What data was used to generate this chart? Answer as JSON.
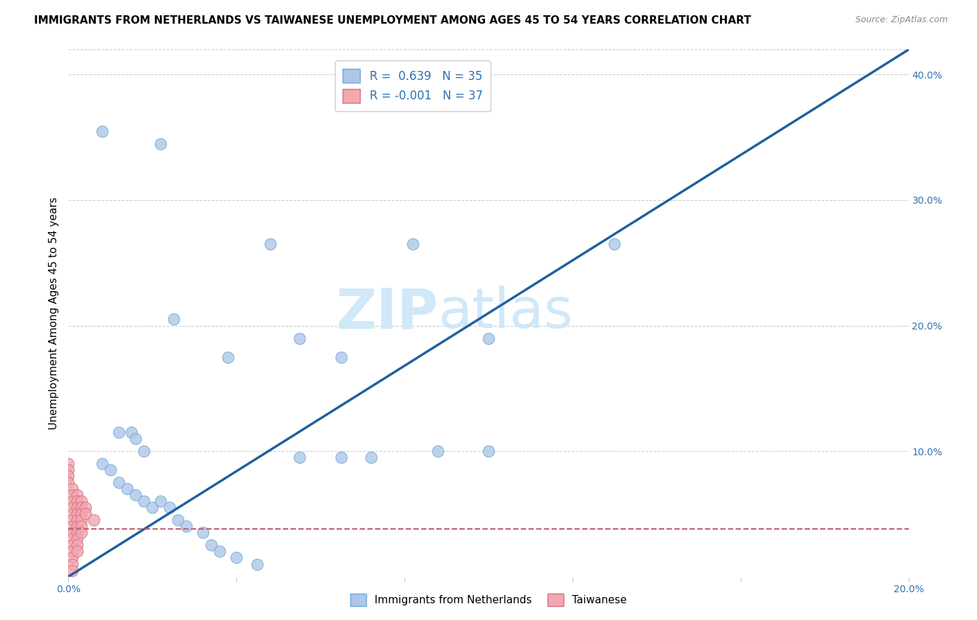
{
  "title": "IMMIGRANTS FROM NETHERLANDS VS TAIWANESE UNEMPLOYMENT AMONG AGES 45 TO 54 YEARS CORRELATION CHART",
  "source": "Source: ZipAtlas.com",
  "ylabel": "Unemployment Among Ages 45 to 54 years",
  "xlim": [
    0.0,
    0.2
  ],
  "ylim": [
    0.0,
    0.42
  ],
  "x_ticks": [
    0.0,
    0.04,
    0.08,
    0.12,
    0.16,
    0.2
  ],
  "x_tick_labels": [
    "0.0%",
    "",
    "",
    "",
    "",
    "20.0%"
  ],
  "y_ticks_right": [
    0.0,
    0.1,
    0.2,
    0.3,
    0.4
  ],
  "y_tick_labels_right": [
    "",
    "10.0%",
    "20.0%",
    "30.0%",
    "40.0%"
  ],
  "legend_entries": [
    {
      "color": "#aec6e8",
      "r": 0.639,
      "n": 35
    },
    {
      "color": "#f4a7b0",
      "r": -0.001,
      "n": 37
    }
  ],
  "blue_scatter": [
    [
      0.008,
      0.355
    ],
    [
      0.022,
      0.345
    ],
    [
      0.048,
      0.265
    ],
    [
      0.082,
      0.265
    ],
    [
      0.13,
      0.265
    ],
    [
      0.1,
      0.19
    ],
    [
      0.055,
      0.19
    ],
    [
      0.065,
      0.175
    ],
    [
      0.025,
      0.205
    ],
    [
      0.038,
      0.175
    ],
    [
      0.072,
      0.095
    ],
    [
      0.088,
      0.1
    ],
    [
      0.1,
      0.1
    ],
    [
      0.055,
      0.095
    ],
    [
      0.065,
      0.095
    ],
    [
      0.012,
      0.115
    ],
    [
      0.015,
      0.115
    ],
    [
      0.016,
      0.11
    ],
    [
      0.018,
      0.1
    ],
    [
      0.008,
      0.09
    ],
    [
      0.01,
      0.085
    ],
    [
      0.012,
      0.075
    ],
    [
      0.014,
      0.07
    ],
    [
      0.016,
      0.065
    ],
    [
      0.018,
      0.06
    ],
    [
      0.02,
      0.055
    ],
    [
      0.022,
      0.06
    ],
    [
      0.024,
      0.055
    ],
    [
      0.026,
      0.045
    ],
    [
      0.028,
      0.04
    ],
    [
      0.032,
      0.035
    ],
    [
      0.034,
      0.025
    ],
    [
      0.036,
      0.02
    ],
    [
      0.04,
      0.015
    ],
    [
      0.045,
      0.01
    ]
  ],
  "pink_scatter": [
    [
      0.0,
      0.09
    ],
    [
      0.0,
      0.085
    ],
    [
      0.0,
      0.08
    ],
    [
      0.0,
      0.075
    ],
    [
      0.001,
      0.07
    ],
    [
      0.001,
      0.065
    ],
    [
      0.001,
      0.06
    ],
    [
      0.001,
      0.055
    ],
    [
      0.001,
      0.05
    ],
    [
      0.001,
      0.045
    ],
    [
      0.001,
      0.04
    ],
    [
      0.001,
      0.035
    ],
    [
      0.001,
      0.03
    ],
    [
      0.001,
      0.025
    ],
    [
      0.001,
      0.02
    ],
    [
      0.001,
      0.015
    ],
    [
      0.001,
      0.01
    ],
    [
      0.001,
      0.005
    ],
    [
      0.002,
      0.065
    ],
    [
      0.002,
      0.06
    ],
    [
      0.002,
      0.055
    ],
    [
      0.002,
      0.05
    ],
    [
      0.002,
      0.045
    ],
    [
      0.002,
      0.04
    ],
    [
      0.002,
      0.035
    ],
    [
      0.002,
      0.03
    ],
    [
      0.002,
      0.025
    ],
    [
      0.002,
      0.02
    ],
    [
      0.003,
      0.06
    ],
    [
      0.003,
      0.055
    ],
    [
      0.003,
      0.05
    ],
    [
      0.003,
      0.045
    ],
    [
      0.003,
      0.04
    ],
    [
      0.003,
      0.035
    ],
    [
      0.004,
      0.055
    ],
    [
      0.004,
      0.05
    ],
    [
      0.006,
      0.045
    ]
  ],
  "blue_line_x": [
    -0.01,
    0.21
  ],
  "blue_line_y": [
    -0.021,
    0.441
  ],
  "pink_line_x": [
    0.0,
    0.2
  ],
  "pink_line_y": [
    0.038,
    0.038
  ],
  "scatter_size": 140,
  "blue_scatter_color": "#aec6e8",
  "blue_scatter_edge": "#6fa8d4",
  "pink_scatter_color": "#f4a7b0",
  "pink_scatter_edge": "#d07080",
  "blue_line_color": "#2060a0",
  "pink_line_color": "#c06070",
  "background_color": "#ffffff",
  "watermark_zip": "ZIP",
  "watermark_atlas": "atlas",
  "watermark_color": "#d0e8f8",
  "title_fontsize": 11,
  "axis_label_fontsize": 11,
  "tick_fontsize": 10,
  "legend_fontsize": 12
}
